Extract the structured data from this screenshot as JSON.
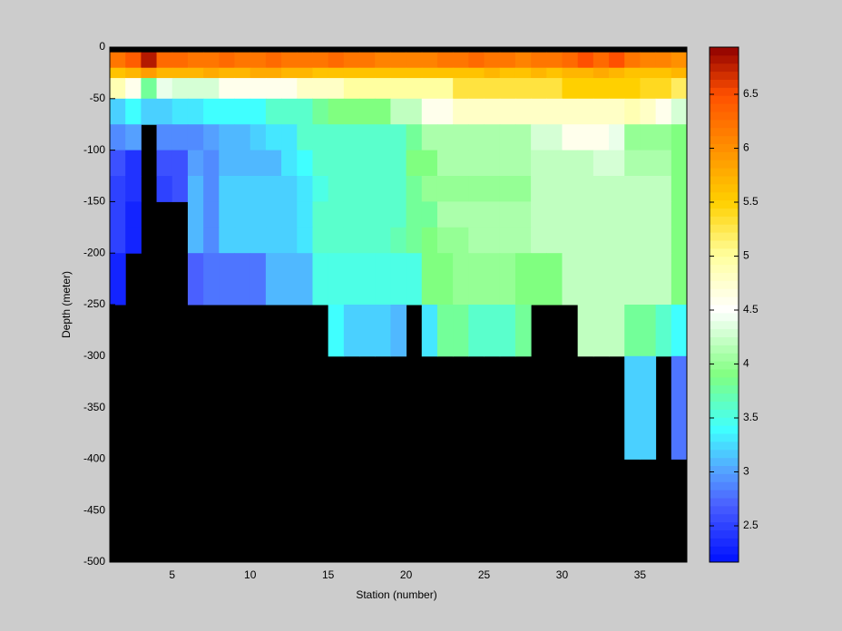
{
  "chart_data": {
    "type": "heatmap",
    "xlabel": "Station (number)",
    "ylabel": "Depth (meter)",
    "x": [
      1,
      2,
      3,
      4,
      5,
      6,
      7,
      8,
      9,
      10,
      11,
      12,
      13,
      14,
      15,
      16,
      17,
      18,
      19,
      20,
      21,
      22,
      23,
      24,
      25,
      26,
      27,
      28,
      29,
      30,
      31,
      32,
      33,
      34,
      35,
      36,
      37,
      38
    ],
    "y": [
      0,
      -5,
      -20,
      -30,
      -50,
      -75,
      -100,
      -125,
      -150,
      -175,
      -200,
      -250,
      -300,
      -400,
      -500
    ],
    "values": [
      [
        null,
        null,
        null,
        null,
        null,
        null,
        null,
        null,
        null,
        null,
        null,
        null,
        null,
        null,
        null,
        null,
        null,
        null,
        null,
        null,
        null,
        null,
        null,
        null,
        null,
        null,
        null,
        null,
        null,
        null,
        null,
        null,
        null,
        null,
        null,
        null,
        null
      ],
      [
        6.2,
        6.4,
        6.8,
        6.3,
        6.3,
        6.2,
        6.2,
        6.3,
        6.2,
        6.2,
        6.3,
        6.2,
        6.2,
        6.2,
        6.3,
        6.2,
        6.2,
        6.1,
        6.1,
        6.1,
        6.1,
        6.2,
        6.2,
        6.3,
        6.2,
        6.2,
        6.1,
        6.2,
        6.2,
        6.3,
        6.5,
        6.3,
        6.5,
        6.2,
        6.1,
        6.1,
        6.0
      ],
      [
        5.6,
        5.7,
        5.9,
        5.7,
        5.7,
        5.7,
        5.8,
        5.7,
        5.7,
        5.8,
        5.8,
        5.7,
        5.7,
        5.6,
        5.6,
        5.6,
        5.6,
        5.6,
        5.6,
        5.6,
        5.6,
        5.6,
        5.6,
        5.6,
        5.7,
        5.6,
        5.6,
        5.7,
        5.6,
        5.7,
        5.7,
        5.8,
        5.7,
        5.6,
        5.6,
        5.6,
        5.7
      ],
      [
        4.9,
        4.6,
        3.8,
        4.4,
        4.3,
        4.3,
        4.3,
        4.6,
        4.6,
        4.6,
        4.6,
        4.6,
        4.8,
        4.8,
        4.8,
        5.0,
        5.0,
        5.0,
        5.0,
        5.0,
        5.0,
        5.0,
        5.3,
        5.3,
        5.3,
        5.3,
        5.3,
        5.3,
        5.3,
        5.5,
        5.5,
        5.5,
        5.5,
        5.5,
        5.4,
        5.4,
        5.2
      ],
      [
        3.2,
        3.4,
        3.2,
        3.2,
        3.3,
        3.3,
        3.4,
        3.4,
        3.4,
        3.4,
        3.6,
        3.6,
        3.6,
        3.8,
        3.9,
        3.9,
        3.9,
        3.9,
        4.2,
        4.2,
        4.6,
        4.6,
        4.8,
        4.8,
        4.8,
        4.8,
        4.8,
        4.8,
        4.8,
        4.8,
        4.8,
        4.8,
        4.8,
        4.9,
        4.8,
        4.6,
        4.3
      ],
      [
        2.9,
        3.0,
        null,
        2.9,
        2.9,
        2.9,
        3.0,
        3.1,
        3.1,
        3.2,
        3.3,
        3.3,
        3.6,
        3.6,
        3.6,
        3.6,
        3.6,
        3.6,
        3.6,
        3.8,
        4.1,
        4.1,
        4.1,
        4.1,
        4.1,
        4.1,
        4.1,
        4.3,
        4.3,
        4.6,
        4.6,
        4.6,
        4.4,
        4.0,
        4.0,
        4.0,
        3.9
      ],
      [
        2.6,
        2.4,
        null,
        2.6,
        2.6,
        3.0,
        2.9,
        3.1,
        3.1,
        3.1,
        3.1,
        3.3,
        3.4,
        3.6,
        3.6,
        3.6,
        3.6,
        3.6,
        3.6,
        3.9,
        3.9,
        4.1,
        4.1,
        4.1,
        4.1,
        4.1,
        4.1,
        4.2,
        4.2,
        4.2,
        4.2,
        4.3,
        4.3,
        4.1,
        4.1,
        4.1,
        3.9
      ],
      [
        2.5,
        2.4,
        null,
        2.5,
        2.6,
        3.1,
        2.9,
        3.2,
        3.2,
        3.2,
        3.2,
        3.2,
        3.3,
        3.5,
        3.6,
        3.6,
        3.6,
        3.6,
        3.6,
        3.8,
        4.0,
        4.0,
        4.0,
        4.0,
        4.0,
        4.0,
        4.0,
        4.2,
        4.2,
        4.2,
        4.2,
        4.2,
        4.2,
        4.2,
        4.2,
        4.2,
        3.9
      ],
      [
        2.5,
        2.3,
        null,
        null,
        null,
        3.1,
        2.9,
        3.2,
        3.2,
        3.2,
        3.2,
        3.2,
        3.3,
        3.6,
        3.6,
        3.6,
        3.6,
        3.6,
        3.6,
        3.8,
        3.8,
        4.1,
        4.1,
        4.1,
        4.1,
        4.1,
        4.1,
        4.2,
        4.2,
        4.2,
        4.2,
        4.2,
        4.2,
        4.2,
        4.2,
        4.2,
        3.9
      ],
      [
        2.5,
        2.3,
        null,
        null,
        null,
        3.1,
        2.9,
        3.2,
        3.2,
        3.2,
        3.2,
        3.2,
        3.3,
        3.6,
        3.6,
        3.6,
        3.6,
        3.6,
        3.7,
        3.8,
        3.9,
        4.0,
        4.0,
        4.1,
        4.1,
        4.1,
        4.1,
        4.2,
        4.2,
        4.2,
        4.2,
        4.2,
        4.2,
        4.2,
        4.2,
        4.2,
        3.9
      ],
      [
        2.3,
        null,
        null,
        null,
        null,
        2.7,
        2.8,
        2.8,
        2.8,
        2.8,
        3.1,
        3.1,
        3.1,
        3.5,
        3.5,
        3.5,
        3.5,
        3.5,
        3.5,
        3.5,
        3.9,
        3.9,
        4.0,
        4.0,
        4.0,
        4.0,
        3.9,
        3.9,
        3.9,
        4.2,
        4.2,
        4.2,
        4.2,
        4.2,
        4.2,
        4.2,
        3.9
      ],
      [
        null,
        null,
        null,
        null,
        null,
        null,
        null,
        null,
        null,
        null,
        null,
        null,
        null,
        null,
        3.4,
        3.2,
        3.2,
        3.2,
        3.1,
        null,
        3.3,
        3.8,
        3.8,
        3.6,
        3.6,
        3.6,
        3.8,
        null,
        null,
        null,
        4.2,
        4.2,
        4.2,
        3.8,
        3.8,
        3.6,
        3.4
      ],
      [
        null,
        null,
        null,
        null,
        null,
        null,
        null,
        null,
        null,
        null,
        null,
        null,
        null,
        null,
        null,
        null,
        null,
        null,
        null,
        null,
        null,
        null,
        null,
        null,
        null,
        null,
        null,
        null,
        null,
        null,
        null,
        null,
        null,
        3.2,
        3.2,
        null,
        2.8
      ],
      [
        null,
        null,
        null,
        null,
        null,
        null,
        null,
        null,
        null,
        null,
        null,
        null,
        null,
        null,
        null,
        null,
        null,
        null,
        null,
        null,
        null,
        null,
        null,
        null,
        null,
        null,
        null,
        null,
        null,
        null,
        null,
        null,
        null,
        null,
        null,
        null,
        null
      ]
    ],
    "xlim": [
      1,
      38
    ],
    "ylim": [
      -500,
      0
    ],
    "xticks": [
      5,
      10,
      15,
      20,
      25,
      30,
      35
    ],
    "yticks": [
      0,
      -50,
      -100,
      -150,
      -200,
      -250,
      -300,
      -350,
      -400,
      -450,
      -500
    ],
    "clim": [
      2.164,
      6.937
    ],
    "cticks": [
      2.5,
      3,
      3.5,
      4,
      4.5,
      5,
      5.5,
      6,
      6.5
    ],
    "nan_color": "#000000",
    "colormap": [
      [
        2.164,
        "#0010ff"
      ],
      [
        2.7,
        "#4a60ff"
      ],
      [
        3.0,
        "#55a0ff"
      ],
      [
        3.4,
        "#40ffff"
      ],
      [
        3.9,
        "#80ff80"
      ],
      [
        4.2,
        "#c0ffc0"
      ],
      [
        4.5,
        "#ffffff"
      ],
      [
        5.0,
        "#ffffa0"
      ],
      [
        5.5,
        "#ffd000"
      ],
      [
        6.0,
        "#ff9000"
      ],
      [
        6.5,
        "#ff5000"
      ],
      [
        6.937,
        "#900000"
      ]
    ]
  }
}
